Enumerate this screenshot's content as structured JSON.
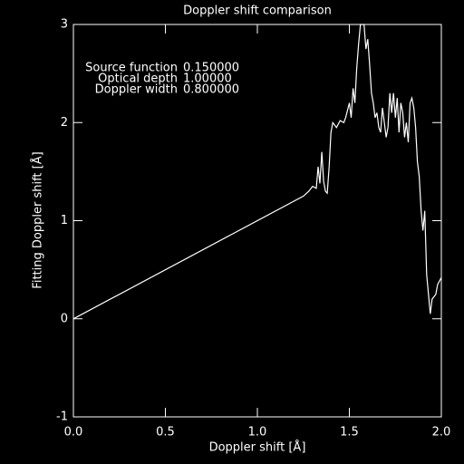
{
  "chart_data": {
    "type": "line",
    "title": "Doppler shift comparison",
    "x_label": "Doppler shift [Å]",
    "y_label": "Fitting Doppler shift [Å]",
    "annotations": [
      {
        "label": "Source function",
        "value": "0.150000"
      },
      {
        "label": "Optical depth",
        "value": "1.00000"
      },
      {
        "label": "Doppler width",
        "value": "0.800000"
      }
    ],
    "xlim": [
      0,
      2
    ],
    "ylim": [
      -1,
      3
    ],
    "xticks": [
      {
        "value": 0,
        "label": "0.0"
      },
      {
        "value": 0.5,
        "label": "0.5"
      },
      {
        "value": 1,
        "label": "1.0"
      },
      {
        "value": 1.5,
        "label": "1.5"
      },
      {
        "value": 2,
        "label": "2.0"
      }
    ],
    "yticks": [
      -1,
      0,
      1,
      2,
      3
    ],
    "color": "#ffffff",
    "x": [
      0,
      1.25,
      1.28,
      1.3,
      1.32,
      1.33,
      1.34,
      1.35,
      1.36,
      1.37,
      1.38,
      1.39,
      1.4,
      1.41,
      1.43,
      1.45,
      1.47,
      1.48,
      1.5,
      1.51,
      1.52,
      1.53,
      1.54,
      1.55,
      1.56,
      1.58,
      1.59,
      1.6,
      1.61,
      1.62,
      1.63,
      1.64,
      1.65,
      1.66,
      1.67,
      1.68,
      1.69,
      1.7,
      1.71,
      1.72,
      1.73,
      1.74,
      1.75,
      1.76,
      1.77,
      1.78,
      1.79,
      1.8,
      1.81,
      1.82,
      1.83,
      1.84,
      1.85,
      1.86,
      1.87,
      1.88,
      1.89,
      1.9,
      1.91,
      1.92,
      1.93,
      1.94,
      1.95,
      1.97,
      1.98,
      2.0
    ],
    "values": [
      0,
      1.25,
      1.3,
      1.35,
      1.33,
      1.55,
      1.38,
      1.7,
      1.4,
      1.3,
      1.28,
      1.55,
      1.9,
      2.0,
      1.95,
      2.02,
      2.0,
      2.05,
      2.2,
      2.05,
      2.35,
      2.2,
      2.55,
      2.8,
      3.0,
      3.0,
      2.75,
      2.85,
      2.6,
      2.3,
      2.2,
      2.05,
      2.1,
      1.95,
      1.9,
      2.15,
      2.0,
      1.85,
      1.95,
      2.3,
      2.1,
      2.3,
      2.05,
      2.25,
      1.9,
      2.2,
      2.1,
      1.85,
      2.0,
      1.8,
      2.2,
      2.25,
      2.15,
      1.95,
      1.6,
      1.45,
      1.1,
      0.9,
      1.1,
      0.45,
      0.25,
      0.05,
      0.2,
      0.25,
      0.35,
      0.42
    ]
  }
}
